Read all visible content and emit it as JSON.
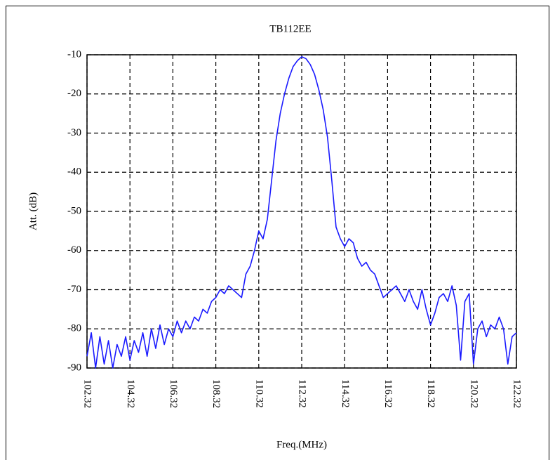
{
  "chart_data": {
    "type": "line",
    "title": "TB112EE",
    "x_label": "Freq.(MHz)",
    "y_label": "Att. (dB)",
    "x": [
      102.32,
      102.52,
      102.72,
      102.92,
      103.12,
      103.32,
      103.52,
      103.72,
      103.92,
      104.12,
      104.32,
      104.52,
      104.72,
      104.92,
      105.12,
      105.32,
      105.52,
      105.72,
      105.92,
      106.12,
      106.32,
      106.52,
      106.72,
      106.92,
      107.12,
      107.32,
      107.52,
      107.72,
      107.92,
      108.12,
      108.32,
      108.52,
      108.72,
      108.92,
      109.12,
      109.32,
      109.52,
      109.72,
      109.92,
      110.12,
      110.32,
      110.52,
      110.72,
      110.92,
      111.12,
      111.32,
      111.52,
      111.72,
      111.92,
      112.12,
      112.32,
      112.52,
      112.72,
      112.92,
      113.12,
      113.32,
      113.52,
      113.72,
      113.92,
      114.12,
      114.32,
      114.52,
      114.72,
      114.92,
      115.12,
      115.32,
      115.52,
      115.72,
      115.92,
      116.12,
      116.32,
      116.52,
      116.72,
      116.92,
      117.12,
      117.32,
      117.52,
      117.72,
      117.92,
      118.12,
      118.32,
      118.52,
      118.72,
      118.92,
      119.12,
      119.32,
      119.52,
      119.72,
      119.92,
      120.12,
      120.32,
      120.52,
      120.72,
      120.92,
      121.12,
      121.32,
      121.52,
      121.72,
      121.92,
      122.12,
      122.32
    ],
    "values": [
      -87,
      -81,
      -90,
      -82,
      -89,
      -83,
      -90,
      -84,
      -87,
      -82,
      -88,
      -83,
      -86,
      -81,
      -87,
      -80,
      -85,
      -79,
      -84,
      -80,
      -82,
      -78,
      -81,
      -78,
      -80,
      -77,
      -78,
      -75,
      -76,
      -73,
      -72,
      -70,
      -71,
      -69,
      -70,
      -71,
      -72,
      -66,
      -64,
      -60,
      -55,
      -57,
      -52,
      -42,
      -32,
      -25,
      -20,
      -16,
      -13,
      -11.5,
      -10.5,
      -11,
      -12.5,
      -15,
      -19,
      -24,
      -31,
      -42,
      -54,
      -57,
      -59,
      -57,
      -58,
      -62,
      -64,
      -63,
      -65,
      -66,
      -69,
      -72,
      -71,
      -70,
      -69,
      -71,
      -73,
      -70,
      -73,
      -75,
      -70,
      -75,
      -79,
      -76,
      -72,
      -71,
      -73,
      -69,
      -74,
      -88,
      -73,
      -71,
      -89,
      -80,
      -78,
      -82,
      -79,
      -80,
      -77,
      -80,
      -89,
      -82,
      -81
    ],
    "color": "#1a1aff",
    "xlim": [
      102.32,
      122.32
    ],
    "xticks": [
      102.32,
      104.32,
      106.32,
      108.32,
      110.32,
      112.32,
      114.32,
      116.32,
      118.32,
      120.32,
      122.32
    ],
    "ylim": [
      -90,
      -10
    ],
    "yticks": [
      -10,
      -20,
      -30,
      -40,
      -50,
      -60,
      -70,
      -80,
      -90
    ],
    "grid": true
  }
}
